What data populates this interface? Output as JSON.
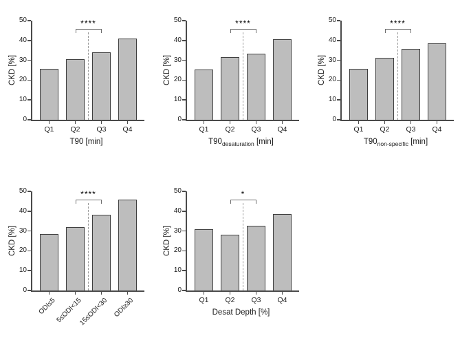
{
  "figure": {
    "background": "#ffffff",
    "bar_fill": "#bdbdbd",
    "bar_border": "#3f3f3f",
    "axis_color": "#4a4a4a",
    "bracket_color": "#6e6e6e",
    "dash_color": "#9a9a9a",
    "text_color": "#111111"
  },
  "chart_data": [
    {
      "type": "bar",
      "id": "t90",
      "title_main": "T90",
      "title_sub": "",
      "title_suffix": " [min]",
      "ylabel": "CKD [%]",
      "ylim": [
        0,
        50
      ],
      "yticks": [
        "0",
        "10",
        "20",
        "30",
        "40",
        "50"
      ],
      "categories": [
        "Q1",
        "Q2",
        "Q3",
        "Q4"
      ],
      "values": [
        25.7,
        30.4,
        34.0,
        41.1
      ],
      "rotated_labels": false,
      "grid": false,
      "significance": {
        "label": "****",
        "between": [
          "Q2",
          "Q3"
        ],
        "from_index": 1,
        "to_index": 2,
        "bracket_y": 46
      },
      "dashed_line_between": [
        "Q2",
        "Q3"
      ]
    },
    {
      "type": "bar",
      "id": "t90-desaturation",
      "title_main": "T90",
      "title_sub": "desaturation",
      "title_suffix": " [min]",
      "ylabel": "CKD [%]",
      "ylim": [
        0,
        50
      ],
      "yticks": [
        "0",
        "10",
        "20",
        "30",
        "40",
        "50"
      ],
      "categories": [
        "Q1",
        "Q2",
        "Q3",
        "Q4"
      ],
      "values": [
        25.3,
        31.5,
        33.3,
        40.6
      ],
      "rotated_labels": false,
      "grid": false,
      "significance": {
        "label": "****",
        "between": [
          "Q2",
          "Q3"
        ],
        "from_index": 1,
        "to_index": 2,
        "bracket_y": 46
      },
      "dashed_line_between": [
        "Q2",
        "Q3"
      ]
    },
    {
      "type": "bar",
      "id": "t90-non-specific",
      "title_main": "T90",
      "title_sub": "non-specific",
      "title_suffix": " [min]",
      "ylabel": "CKD [%]",
      "ylim": [
        0,
        50
      ],
      "yticks": [
        "0",
        "10",
        "20",
        "30",
        "40",
        "50"
      ],
      "categories": [
        "Q1",
        "Q2",
        "Q3",
        "Q4"
      ],
      "values": [
        25.6,
        31.2,
        35.7,
        38.5
      ],
      "rotated_labels": false,
      "grid": false,
      "significance": {
        "label": "****",
        "between": [
          "Q2",
          "Q3"
        ],
        "from_index": 1,
        "to_index": 2,
        "bracket_y": 46
      },
      "dashed_line_between": [
        "Q2",
        "Q3"
      ]
    },
    {
      "type": "bar",
      "id": "odi",
      "title_main": "",
      "title_sub": "",
      "title_suffix": "",
      "ylabel": "CKD [%]",
      "ylim": [
        0,
        50
      ],
      "yticks": [
        "0",
        "10",
        "20",
        "30",
        "40",
        "50"
      ],
      "categories": [
        "ODI≤5",
        "5≤ODI<15",
        "15≤ODI<30",
        "ODI≥30"
      ],
      "values": [
        28.4,
        32.0,
        38.1,
        46.0
      ],
      "rotated_labels": true,
      "grid": false,
      "significance": {
        "label": "****",
        "between": [
          "5≤ODI<15",
          "15≤ODI<30"
        ],
        "from_index": 1,
        "to_index": 2,
        "bracket_y": 46
      },
      "dashed_line_between": [
        "5≤ODI<15",
        "15≤ODI<30"
      ]
    },
    {
      "type": "bar",
      "id": "desat-depth",
      "title_main": "Desat Depth [%]",
      "title_sub": "",
      "title_suffix": "",
      "ylabel": "CKD [%]",
      "ylim": [
        0,
        50
      ],
      "yticks": [
        "0",
        "10",
        "20",
        "30",
        "40",
        "50"
      ],
      "categories": [
        "Q1",
        "Q2",
        "Q3",
        "Q4"
      ],
      "values": [
        30.8,
        28.0,
        32.8,
        38.6
      ],
      "rotated_labels": false,
      "grid": false,
      "significance": {
        "label": "*",
        "between": [
          "Q2",
          "Q3"
        ],
        "from_index": 1,
        "to_index": 2,
        "bracket_y": 46
      },
      "dashed_line_between": [
        "Q2",
        "Q3"
      ]
    }
  ]
}
